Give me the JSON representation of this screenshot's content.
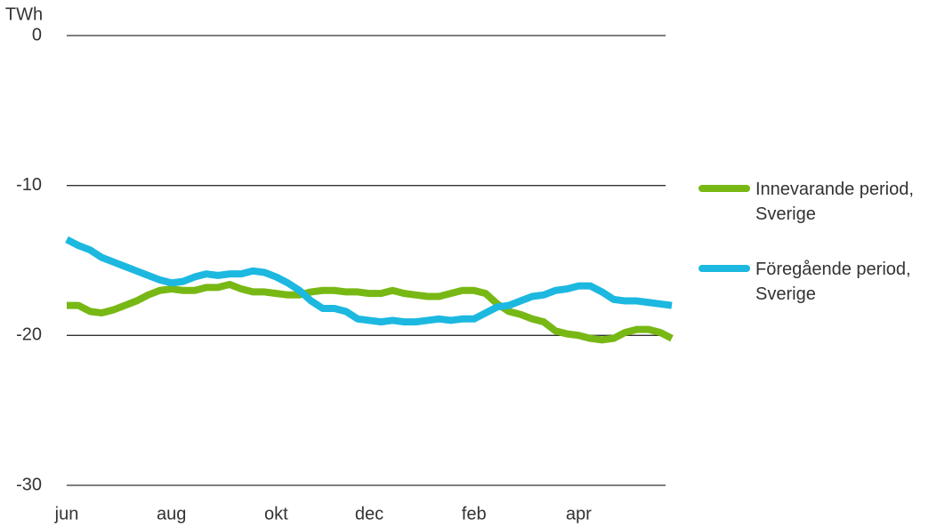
{
  "chart_data": {
    "type": "line",
    "y_unit": "TWh",
    "categories": [
      "jun",
      null,
      null,
      null,
      null,
      null,
      null,
      null,
      null,
      "aug",
      null,
      null,
      null,
      null,
      null,
      null,
      null,
      null,
      "okt",
      null,
      null,
      null,
      null,
      null,
      null,
      null,
      "dec",
      null,
      null,
      null,
      null,
      null,
      null,
      null,
      null,
      "feb",
      null,
      null,
      null,
      null,
      null,
      null,
      null,
      null,
      "apr",
      null,
      null,
      null,
      null,
      null,
      null,
      null,
      null
    ],
    "series": [
      {
        "name": "Innevarande period, Sverige",
        "color": "#78b814",
        "values": [
          -18.0,
          -18.0,
          -18.4,
          -18.5,
          -18.3,
          -18.0,
          -17.7,
          -17.3,
          -17.0,
          -16.9,
          -17.0,
          -17.0,
          -16.8,
          -16.8,
          -16.6,
          -16.9,
          -17.1,
          -17.1,
          -17.2,
          -17.3,
          -17.3,
          -17.1,
          -17.0,
          -17.0,
          -17.1,
          -17.1,
          -17.2,
          -17.2,
          -17.0,
          -17.2,
          -17.3,
          -17.4,
          -17.4,
          -17.2,
          -17.0,
          -17.0,
          -17.2,
          -17.9,
          -18.4,
          -18.6,
          -18.9,
          -19.1,
          -19.7,
          -19.9,
          -20.0,
          -20.2,
          -20.3,
          -20.2,
          -19.8,
          -19.6,
          -19.6,
          -19.8,
          -20.2
        ]
      },
      {
        "name": "Föregående period, Sverige",
        "color": "#1cb8e0",
        "values": [
          -13.6,
          -14.0,
          -14.3,
          -14.8,
          -15.1,
          -15.4,
          -15.7,
          -16.0,
          -16.3,
          -16.5,
          -16.4,
          -16.1,
          -15.9,
          -16.0,
          -15.9,
          -15.9,
          -15.7,
          -15.8,
          -16.1,
          -16.5,
          -17.0,
          -17.7,
          -18.2,
          -18.2,
          -18.4,
          -18.9,
          -19.0,
          -19.1,
          -19.0,
          -19.1,
          -19.1,
          -19.0,
          -18.9,
          -19.0,
          -18.9,
          -18.9,
          -18.5,
          -18.1,
          -18.0,
          -17.7,
          -17.4,
          -17.3,
          -17.0,
          -16.9,
          -16.7,
          -16.7,
          -17.1,
          -17.6,
          -17.7,
          -17.7,
          -17.8,
          -17.9,
          -18.0
        ]
      }
    ],
    "ylim": [
      -30,
      0
    ],
    "yticks": [
      0,
      -10,
      -20,
      -30
    ],
    "grid": true,
    "legend": "right"
  }
}
